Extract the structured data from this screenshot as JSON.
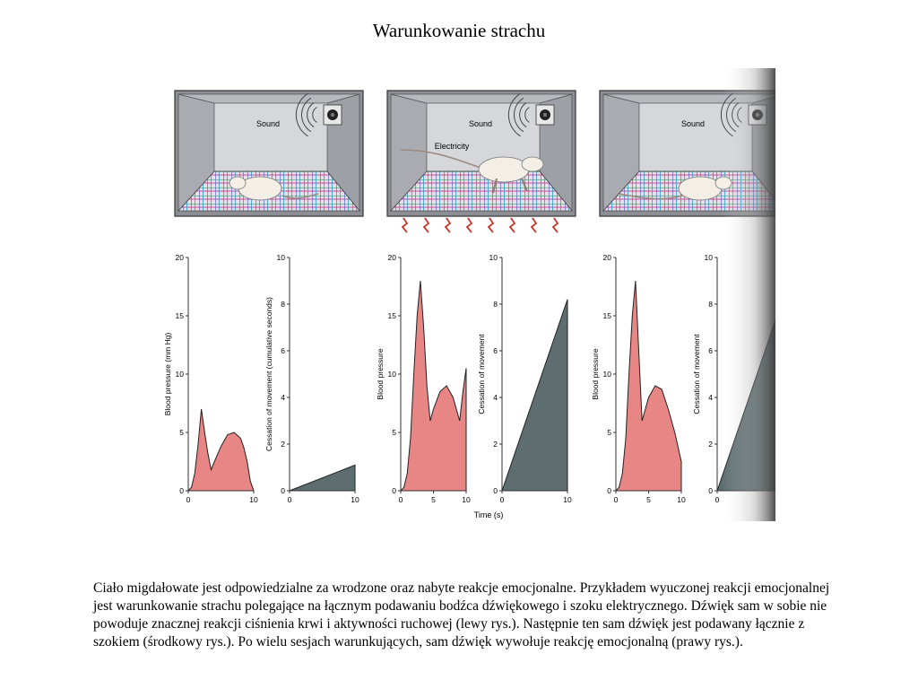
{
  "title": "Warunkowanie strachu",
  "panels": [
    {
      "id": "left",
      "labels": [
        "Sound"
      ]
    },
    {
      "id": "middle",
      "labels": [
        "Sound",
        "Electricity"
      ]
    },
    {
      "id": "right",
      "labels": [
        "Sound"
      ]
    }
  ],
  "chart_data": [
    {
      "type": "area",
      "panel": "left",
      "ylabel": "Blood pressure (mm Hg)",
      "xlim": [
        0,
        10
      ],
      "ylim": [
        0,
        20
      ],
      "x_ticks": [
        0,
        10
      ],
      "y_ticks": [
        0,
        5,
        10,
        15,
        20
      ],
      "x": [
        0,
        0.5,
        1,
        1.5,
        2,
        2.5,
        3,
        3.5,
        4,
        5,
        6,
        7,
        8,
        8.5,
        9,
        9.5,
        10
      ],
      "y": [
        0,
        0.3,
        1.5,
        4,
        7,
        5,
        3.2,
        1.8,
        2.5,
        3.8,
        4.8,
        5,
        4.5,
        3.7,
        2.5,
        0.8,
        0
      ],
      "color": "#e88585"
    },
    {
      "type": "area",
      "panel": "left",
      "ylabel": "Cessation of movement (cumulative seconds)",
      "xlim": [
        0,
        10
      ],
      "ylim": [
        0,
        10
      ],
      "x_ticks": [
        0,
        10
      ],
      "y_ticks": [
        0,
        2,
        4,
        6,
        8,
        10
      ],
      "x": [
        0,
        10
      ],
      "y": [
        0,
        1.1
      ],
      "color": "#5e6e70"
    },
    {
      "type": "area",
      "panel": "middle",
      "ylabel": "Blood pressure",
      "xlim": [
        0,
        10
      ],
      "ylim": [
        0,
        20
      ],
      "x_ticks": [
        0,
        5,
        10
      ],
      "y_ticks": [
        0,
        5,
        10,
        15,
        20
      ],
      "x": [
        0,
        0.5,
        1,
        1.5,
        2,
        2.5,
        3,
        3.5,
        4,
        4.5,
        5,
        6,
        7,
        8,
        9,
        9.5,
        10
      ],
      "y": [
        0,
        0.3,
        1.5,
        4.5,
        10,
        15,
        18,
        14,
        9,
        6,
        7,
        8.5,
        9,
        8,
        6,
        8.5,
        10.5
      ],
      "color": "#e88585"
    },
    {
      "type": "area",
      "panel": "middle",
      "ylabel": "Cessation of movement",
      "xlabel": "Time (s)",
      "xlim": [
        0,
        10
      ],
      "ylim": [
        0,
        10
      ],
      "x_ticks": [
        0,
        10
      ],
      "y_ticks": [
        0,
        2,
        4,
        6,
        8,
        10
      ],
      "x": [
        0,
        10
      ],
      "y": [
        0,
        8.2
      ],
      "color": "#5e6e70"
    },
    {
      "type": "area",
      "panel": "right",
      "ylabel": "Blood pressure",
      "xlim": [
        0,
        10
      ],
      "ylim": [
        0,
        20
      ],
      "x_ticks": [
        0,
        5,
        10
      ],
      "y_ticks": [
        0,
        5,
        10,
        15,
        20
      ],
      "x": [
        0,
        0.5,
        1,
        1.5,
        2,
        2.5,
        3,
        3.5,
        4,
        5,
        6,
        7,
        8,
        9,
        10
      ],
      "y": [
        0,
        0.3,
        1.5,
        4.5,
        10,
        15,
        18,
        12,
        6,
        8,
        9,
        8.7,
        7,
        5,
        2.5
      ],
      "color": "#e88585"
    },
    {
      "type": "area",
      "panel": "right",
      "ylabel": "Cessation of movement",
      "xlim": [
        0,
        10
      ],
      "ylim": [
        0,
        10
      ],
      "x_ticks": [
        0
      ],
      "y_ticks": [
        0,
        2,
        4,
        6,
        8,
        10
      ],
      "x": [
        0,
        10
      ],
      "y": [
        0,
        8.2
      ],
      "color": "#5e6e70"
    }
  ],
  "caption": "Ciało migdałowate jest odpowiedzialne za wrodzone oraz nabyte reakcje emocjonalne. Przykładem wyuczonej reakcji emocjonalnej jest warunkowanie strachu polegające na łącznym podawaniu bodźca dźwiękowego i szoku elektrycznego. Dźwięk sam w sobie nie powoduje znacznej reakcji ciśnienia krwi i aktywności ruchowej (lewy rys.). Następnie ten sam dźwięk jest podawany łącznie z szokiem (środkowy rys.). Po wielu sesjach warunkujących, sam dźwięk wywołuje reakcję emocjonalną (prawy rys.)."
}
